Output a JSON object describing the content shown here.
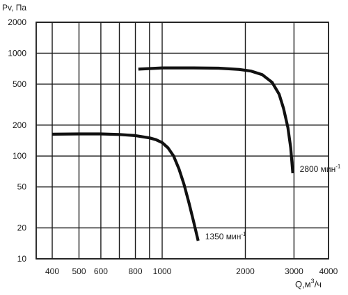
{
  "chart_data": {
    "type": "line",
    "title": "",
    "xlabel": "Q,м3/ч",
    "xlabel_main": "Q,м",
    "xlabel_sup": "3",
    "xlabel_rest": "/ч",
    "ylabel": "Pv, Па",
    "x_scale": "log",
    "y_scale": "log",
    "xlim": [
      350,
      4000
    ],
    "ylim": [
      10,
      2000
    ],
    "x_ticks": [
      400,
      500,
      600,
      800,
      1000,
      2000,
      3000,
      4000
    ],
    "x_tick_labels": [
      "400",
      "500",
      "600",
      "800",
      "1000",
      "2000",
      "3000",
      "4000"
    ],
    "x_grid": [
      400,
      500,
      600,
      700,
      800,
      900,
      1000,
      2000,
      3000
    ],
    "y_ticks": [
      10,
      20,
      50,
      100,
      200,
      500,
      1000,
      2000
    ],
    "y_tick_labels": [
      "10",
      "20",
      "50",
      "100",
      "200",
      "500",
      "1000",
      "2000"
    ],
    "grid": true,
    "series": [
      {
        "name": "1350 мин-1",
        "label_main": "1350 мин",
        "label_sup": "-1",
        "x": [
          400,
          500,
          600,
          700,
          800,
          900,
          950,
          1000,
          1050,
          1100,
          1150,
          1200,
          1250,
          1300,
          1350
        ],
        "y": [
          163,
          164,
          164,
          162,
          158,
          150,
          144,
          135,
          120,
          100,
          75,
          53,
          35,
          23,
          15
        ]
      },
      {
        "name": "2800 мин-1",
        "label_main": "2800 мин",
        "label_sup": "-1",
        "x": [
          820,
          1000,
          1300,
          1600,
          1900,
          2100,
          2300,
          2500,
          2650,
          2750,
          2850,
          2920,
          2970
        ],
        "y": [
          700,
          720,
          720,
          715,
          695,
          670,
          620,
          520,
          400,
          290,
          190,
          120,
          68
        ]
      }
    ]
  }
}
